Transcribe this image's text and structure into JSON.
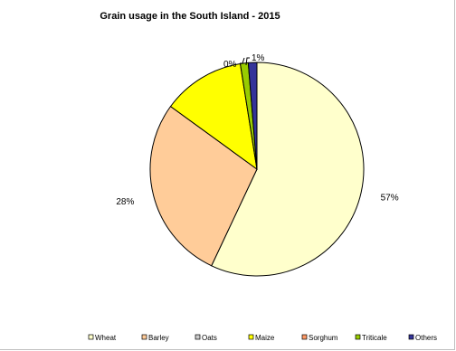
{
  "chart_data": {
    "type": "pie",
    "title": "Grain usage in the South Island  - 2015",
    "series": [
      {
        "name": "Wheat",
        "value": 57,
        "color": "#FFFFCC",
        "label": "57%"
      },
      {
        "name": "Barley",
        "value": 28,
        "color": "#FFCC99",
        "label": "28%"
      },
      {
        "name": "Oats",
        "value": 0,
        "color": "#CCCCCC",
        "label": ""
      },
      {
        "name": "Maize",
        "value": 12.5,
        "color": "#FFFF00",
        "label": ""
      },
      {
        "name": "Sorghum",
        "value": 0,
        "color": "#FF9966",
        "label": "0%"
      },
      {
        "name": "Triticale",
        "value": 1.2,
        "color": "#99CC00",
        "label": ""
      },
      {
        "name": "Others",
        "value": 1.3,
        "color": "#333399",
        "label": "1%"
      }
    ],
    "legend_position": "bottom"
  }
}
